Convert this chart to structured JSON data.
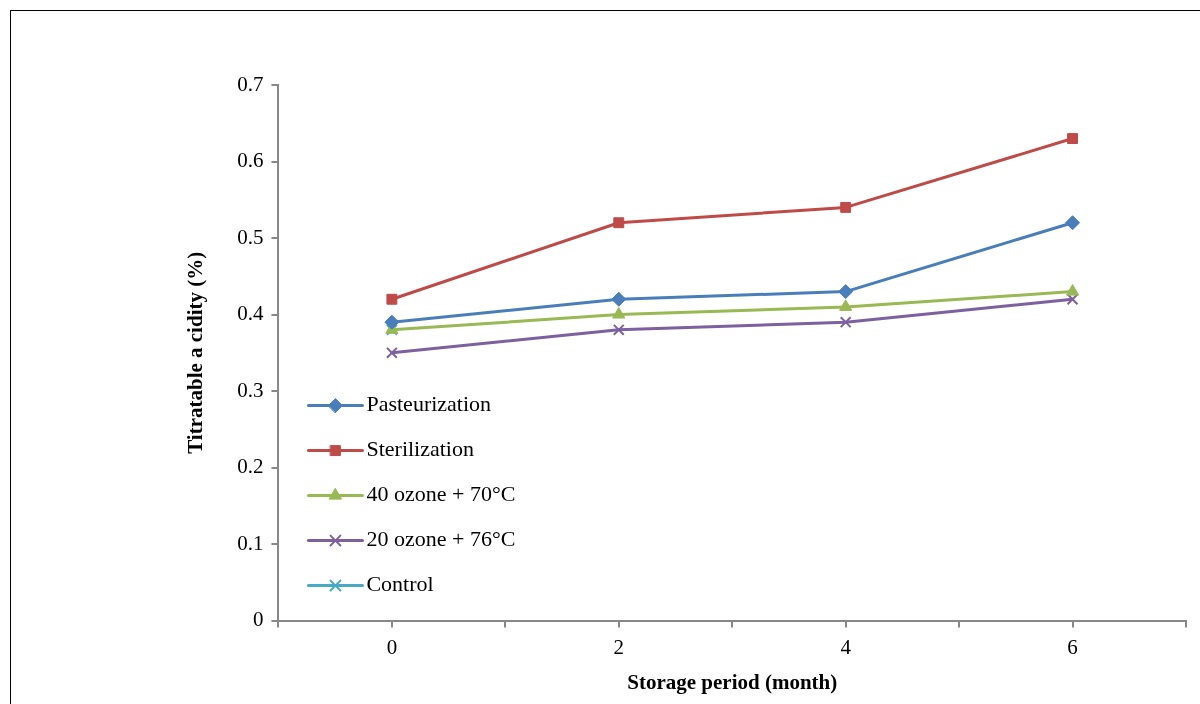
{
  "chart_data": {
    "type": "line",
    "xlabel": "Storage period (month)",
    "ylabel": "Titratable a cidity (%)",
    "x": [
      0,
      2,
      4,
      6
    ],
    "xlim": [
      -1,
      7
    ],
    "xticks": [
      {
        "value": -1,
        "label": null
      },
      0,
      {
        "value": 1,
        "label": null
      },
      2,
      {
        "value": 3,
        "label": null
      },
      4,
      {
        "value": 5,
        "label": null
      },
      6,
      {
        "value": 7,
        "label": null
      }
    ],
    "ylim": [
      0,
      0.7
    ],
    "yticks": [
      0,
      0.1,
      0.2,
      0.3,
      0.4,
      0.5,
      0.6,
      0.7
    ],
    "grid": false,
    "legend": "bottom left",
    "line_style": "solid",
    "series": [
      {
        "name": "Pasteurization",
        "color": "#4a7ebb",
        "marker": "diamond",
        "values": [
          0.39,
          0.42,
          0.43,
          0.52
        ]
      },
      {
        "name": "Sterilization",
        "color": "#be4b48",
        "marker": "square",
        "values": [
          0.42,
          0.52,
          0.54,
          0.63
        ]
      },
      {
        "name": "40 ozone + 70°C",
        "color": "#98b954",
        "marker": "triangle",
        "values": [
          0.38,
          0.4,
          0.41,
          0.43
        ]
      },
      {
        "name": "20 ozone + 76°C",
        "color": "#7d60a0",
        "marker": "cross",
        "values": [
          0.35,
          0.38,
          0.39,
          0.42
        ]
      },
      {
        "name": "Control",
        "color": "#46aac5",
        "marker": "cross",
        "x": [
          0
        ],
        "values": [
          0.38
        ]
      }
    ]
  }
}
